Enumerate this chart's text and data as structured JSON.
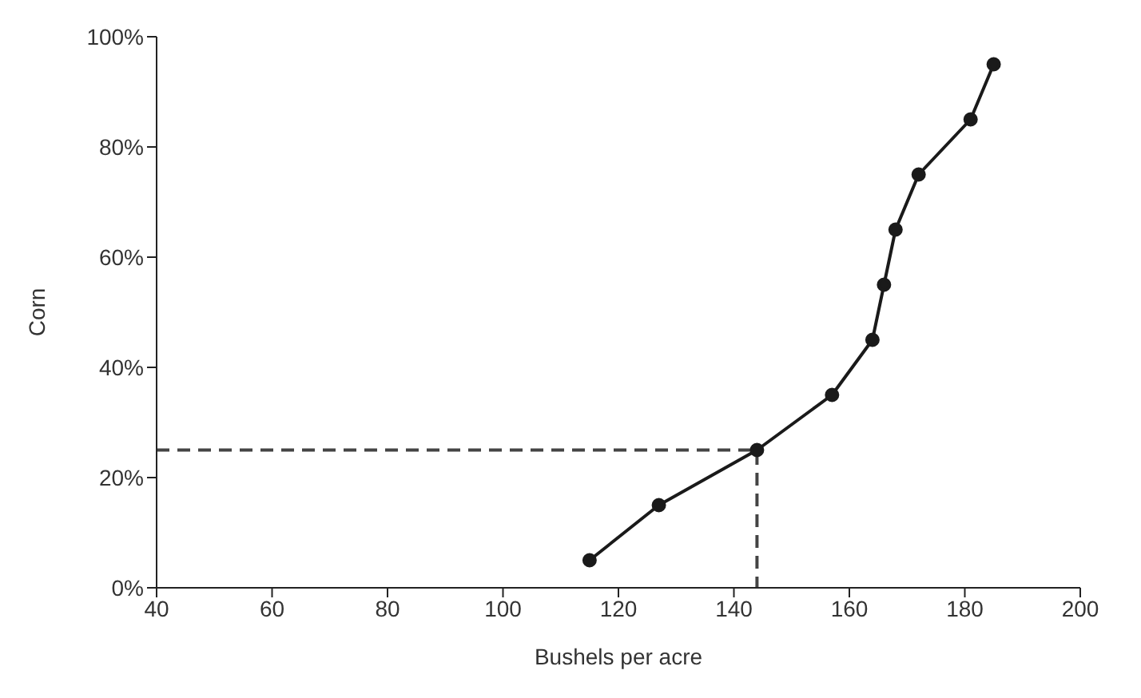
{
  "chart_data": {
    "type": "line",
    "xlabel": "Bushels per acre",
    "ylabel": "Corn",
    "xlim": [
      40,
      200
    ],
    "xticks": [
      40,
      60,
      80,
      100,
      120,
      140,
      160,
      180,
      200
    ],
    "ylim": [
      0,
      100
    ],
    "yticks": [
      {
        "value": 0,
        "label": "0%"
      },
      {
        "value": 20,
        "label": "20%"
      },
      {
        "value": 40,
        "label": "40%"
      },
      {
        "value": 60,
        "label": "60%"
      },
      {
        "value": 80,
        "label": "80%"
      },
      {
        "value": 100,
        "label": "100%"
      }
    ],
    "grid": false,
    "series": [
      {
        "color": "#1a1a1a",
        "marker": "circle",
        "line_style": "solid",
        "x": [
          115,
          127,
          144,
          157,
          164,
          166,
          168,
          172,
          181,
          185
        ],
        "values": [
          5,
          15,
          25,
          35,
          45,
          55,
          65,
          75,
          85,
          95
        ]
      },
      {
        "color": "#444444",
        "marker": "none",
        "line_style": "dashed",
        "x": [
          40,
          144,
          144
        ],
        "values": [
          25,
          25,
          0
        ]
      }
    ]
  }
}
